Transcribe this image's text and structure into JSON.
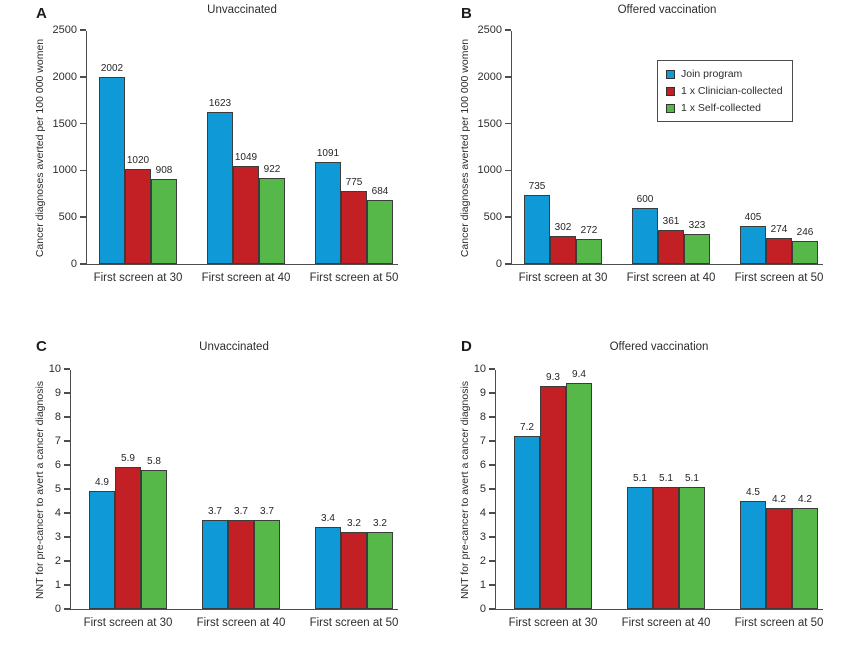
{
  "colors": {
    "join_program_blue": "#0f9ad7",
    "clinician_collected_red": "#c32026",
    "self_collected_green": "#55b848",
    "axis": "#4d4d4d",
    "bar_border": "#3c3c3c",
    "text": "#2d2d2d"
  },
  "legend": {
    "position": "upper right of panel B",
    "items": [
      {
        "label": "Join program",
        "color": "#0f9ad7"
      },
      {
        "label": "1 x Clinician-collected",
        "color": "#c32026"
      },
      {
        "label": "1 x Self-collected",
        "color": "#55b848"
      }
    ]
  },
  "chart_data": [
    {
      "panel_label": "A",
      "type": "bar",
      "title": "Unvaccinated",
      "ylabel": "Cancer diagnoses averted per 100 000 women",
      "xlabel": "",
      "categories": [
        "First screen at 30",
        "First screen at 40",
        "First screen at 50"
      ],
      "series": [
        {
          "name": "Join program",
          "color": "#0f9ad7",
          "values": [
            2002,
            1623,
            1091
          ]
        },
        {
          "name": "1 x Clinician-collected",
          "color": "#c32026",
          "values": [
            1020,
            1049,
            775
          ]
        },
        {
          "name": "1 x Self-collected",
          "color": "#55b848",
          "values": [
            908,
            922,
            684
          ]
        }
      ],
      "ylim": [
        0,
        2500
      ],
      "ytick_step": 500,
      "grid": false,
      "show_legend": false
    },
    {
      "panel_label": "B",
      "type": "bar",
      "title": "Offered vaccination",
      "ylabel": "Cancer diagnoses averted per 100 000 women",
      "xlabel": "",
      "categories": [
        "First screen at 30",
        "First screen at 40",
        "First screen at 50"
      ],
      "series": [
        {
          "name": "Join program",
          "color": "#0f9ad7",
          "values": [
            735,
            600,
            405
          ]
        },
        {
          "name": "1 x Clinician-collected",
          "color": "#c32026",
          "values": [
            302,
            361,
            274
          ]
        },
        {
          "name": "1 x Self-collected",
          "color": "#55b848",
          "values": [
            272,
            323,
            246
          ]
        }
      ],
      "ylim": [
        0,
        2500
      ],
      "ytick_step": 500,
      "grid": false,
      "show_legend": true
    },
    {
      "panel_label": "C",
      "type": "bar",
      "title": "Unvaccinated",
      "ylabel": "NNT for pre-cancer to avert a cancer diagnosis",
      "xlabel": "",
      "categories": [
        "First screen at 30",
        "First screen at 40",
        "First screen at 50"
      ],
      "series": [
        {
          "name": "Join program",
          "color": "#0f9ad7",
          "values": [
            4.9,
            3.7,
            3.4
          ]
        },
        {
          "name": "1 x Clinician-collected",
          "color": "#c32026",
          "values": [
            5.9,
            3.7,
            3.2
          ]
        },
        {
          "name": "1 x Self-collected",
          "color": "#55b848",
          "values": [
            5.8,
            3.7,
            3.2
          ]
        }
      ],
      "ylim": [
        0,
        10
      ],
      "ytick_step": 1,
      "grid": false,
      "show_legend": false
    },
    {
      "panel_label": "D",
      "type": "bar",
      "title": "Offered vaccination",
      "ylabel": "NNT for pre-cancer to avert a cancer diagnosis",
      "xlabel": "",
      "categories": [
        "First screen at 30",
        "First screen at 40",
        "First screen at 50"
      ],
      "series": [
        {
          "name": "Join program",
          "color": "#0f9ad7",
          "values": [
            7.2,
            5.1,
            4.5
          ]
        },
        {
          "name": "1 x Clinician-collected",
          "color": "#c32026",
          "values": [
            9.3,
            5.1,
            4.2
          ]
        },
        {
          "name": "1 x Self-collected",
          "color": "#55b848",
          "values": [
            9.4,
            5.1,
            4.2
          ]
        }
      ],
      "ylim": [
        0,
        10
      ],
      "ytick_step": 1,
      "grid": false,
      "show_legend": false
    }
  ]
}
